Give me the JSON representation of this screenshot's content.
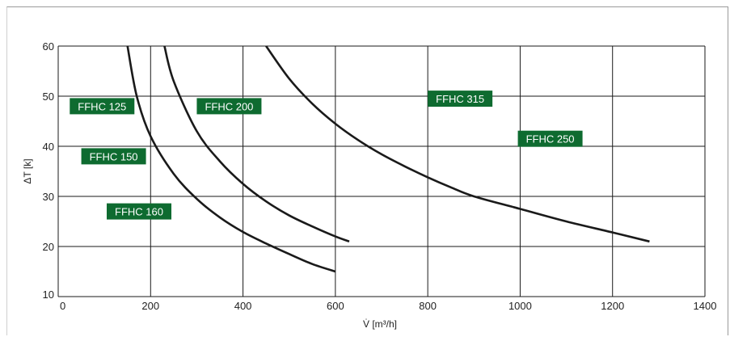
{
  "chart_data": {
    "type": "line",
    "xlabel": "V̇ [m³/h]",
    "ylabel": "ΔT [k]",
    "xlim": [
      0,
      1400
    ],
    "ylim": [
      10,
      60
    ],
    "xticks": [
      0,
      200,
      400,
      600,
      800,
      1000,
      1200,
      1400
    ],
    "yticks": [
      10,
      20,
      30,
      40,
      50,
      60
    ],
    "x_tick_labels": [
      "0",
      "200",
      "400",
      "600",
      "800",
      "1000",
      "1200",
      "1400"
    ],
    "y_tick_labels": [
      "10",
      "20",
      "30",
      "40",
      "50",
      "60"
    ],
    "grid": true,
    "colors": {
      "line": "#1a1a1a",
      "label_bg": "#0e6b30",
      "grid": "#1a1a1a"
    },
    "series": [
      {
        "label_group": "FFHC 125 / FFHC 150 / FFHC 160",
        "x": [
          150,
          170,
          200,
          250,
          300,
          350,
          400,
          450,
          500,
          550,
          600
        ],
        "y": [
          60,
          50,
          42,
          34.5,
          29.5,
          25.8,
          22.9,
          20.6,
          18.5,
          16.5,
          15
        ]
      },
      {
        "label_group": "FFHC 200",
        "x": [
          230,
          250,
          300,
          350,
          400,
          450,
          500,
          550,
          600,
          630
        ],
        "y": [
          60,
          53,
          43,
          37,
          32.5,
          29,
          26.2,
          24,
          22,
          21
        ]
      },
      {
        "label_group": "FFHC 250 / FFHC 315",
        "x": [
          450,
          500,
          550,
          600,
          650,
          700,
          750,
          800,
          850,
          900,
          1000,
          1100,
          1200,
          1280
        ],
        "y": [
          60,
          53.5,
          48.5,
          44.5,
          41.2,
          38.4,
          36,
          33.8,
          31.8,
          30,
          27.5,
          25,
          22.8,
          21
        ]
      }
    ],
    "annotations": [
      {
        "text": "FFHC 125",
        "x": 95,
        "y": 48
      },
      {
        "text": "FFHC 150",
        "x": 120,
        "y": 38
      },
      {
        "text": "FFHC 160",
        "x": 175,
        "y": 27
      },
      {
        "text": "FFHC 200",
        "x": 370,
        "y": 48
      },
      {
        "text": "FFHC 315",
        "x": 870,
        "y": 49.5
      },
      {
        "text": "FFHC 250",
        "x": 1065,
        "y": 41.5
      }
    ]
  }
}
